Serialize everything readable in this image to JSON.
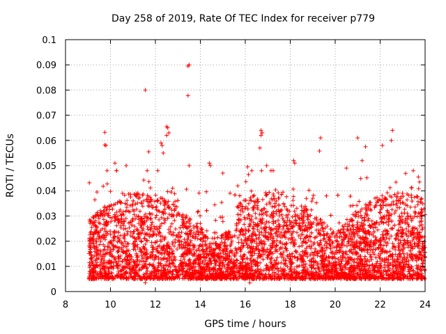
{
  "chart_data": {
    "type": "scatter",
    "title": "Day 258 of 2019, Rate Of TEC Index for receiver p779",
    "xlabel": "GPS time / hours",
    "ylabel": "ROTI / TECUs",
    "xlim": [
      8,
      24
    ],
    "ylim": [
      0,
      0.1
    ],
    "x_ticks": [
      "8",
      "10",
      "12",
      "14",
      "16",
      "18",
      "20",
      "22",
      "24"
    ],
    "y_ticks": [
      "0",
      "0.01",
      "0.02",
      "0.03",
      "0.04",
      "0.05",
      "0.06",
      "0.07",
      "0.08",
      "0.09",
      "0.1"
    ],
    "grid": true,
    "marker": "+",
    "series_color": "#ff0000",
    "data_extent": {
      "x_start": 9.05,
      "x_end": 24.0
    },
    "typical_band": [
      0.005,
      0.035
    ],
    "outliers": [
      {
        "x": 13.45,
        "y": 0.0895
      },
      {
        "x": 13.5,
        "y": 0.09
      },
      {
        "x": 11.55,
        "y": 0.08
      },
      {
        "x": 13.45,
        "y": 0.0778
      },
      {
        "x": 9.75,
        "y": 0.0632
      },
      {
        "x": 12.5,
        "y": 0.0655
      },
      {
        "x": 12.55,
        "y": 0.065
      },
      {
        "x": 12.6,
        "y": 0.063
      },
      {
        "x": 12.5,
        "y": 0.062
      },
      {
        "x": 16.7,
        "y": 0.064
      },
      {
        "x": 16.75,
        "y": 0.063
      },
      {
        "x": 16.7,
        "y": 0.062
      },
      {
        "x": 22.55,
        "y": 0.064
      },
      {
        "x": 22.5,
        "y": 0.06
      },
      {
        "x": 19.35,
        "y": 0.061
      },
      {
        "x": 21.0,
        "y": 0.061
      },
      {
        "x": 12.25,
        "y": 0.059
      },
      {
        "x": 12.3,
        "y": 0.058
      },
      {
        "x": 9.75,
        "y": 0.0582
      },
      {
        "x": 9.8,
        "y": 0.058
      },
      {
        "x": 22.1,
        "y": 0.058
      },
      {
        "x": 21.35,
        "y": 0.0575
      },
      {
        "x": 16.65,
        "y": 0.057
      },
      {
        "x": 19.3,
        "y": 0.0558
      },
      {
        "x": 11.7,
        "y": 0.0555
      },
      {
        "x": 12.35,
        "y": 0.055
      },
      {
        "x": 10.7,
        "y": 0.05
      },
      {
        "x": 10.2,
        "y": 0.051
      },
      {
        "x": 14.4,
        "y": 0.051
      },
      {
        "x": 14.45,
        "y": 0.05
      },
      {
        "x": 13.5,
        "y": 0.05
      },
      {
        "x": 16.1,
        "y": 0.0495
      },
      {
        "x": 16.95,
        "y": 0.05
      },
      {
        "x": 18.15,
        "y": 0.052
      },
      {
        "x": 18.2,
        "y": 0.051
      },
      {
        "x": 20.5,
        "y": 0.049
      },
      {
        "x": 21.2,
        "y": 0.052
      },
      {
        "x": 15.0,
        "y": 0.047
      },
      {
        "x": 9.85,
        "y": 0.048
      },
      {
        "x": 23.7,
        "y": 0.0455
      },
      {
        "x": 23.75,
        "y": 0.0435
      },
      {
        "x": 9.4,
        "y": 0.0395
      },
      {
        "x": 11.55,
        "y": 0.0035
      },
      {
        "x": 16.2,
        "y": 0.0035
      },
      {
        "x": 9.15,
        "y": 0.005
      }
    ]
  }
}
